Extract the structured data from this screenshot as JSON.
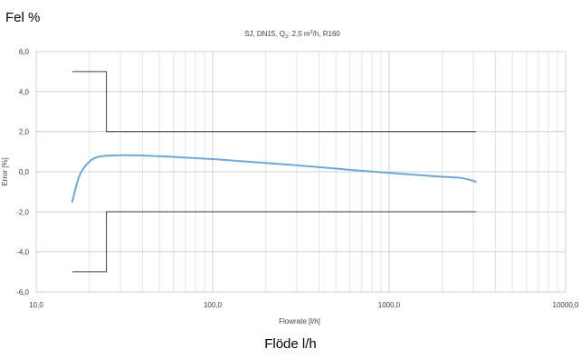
{
  "outer_labels": {
    "y": "Fel %",
    "x": "Flöde l/h"
  },
  "chart_data": {
    "type": "line",
    "title": "SJ, DN15, Q3: 2,5 m3/h, R160",
    "title_parts": {
      "pre": "SJ, DN15, Q",
      "sub": "3",
      "mid": ": 2,5 m",
      "sup": "3",
      "post": "/h, R160"
    },
    "xlabel": "Flowrate [l/h]",
    "ylabel": "Error [%]",
    "x_scale": "log",
    "xlim": [
      10,
      10000
    ],
    "ylim": [
      -6,
      6
    ],
    "x_ticks": [
      10,
      100,
      1000,
      10000
    ],
    "x_tick_labels": [
      "10,0",
      "100,0",
      "1000,0",
      "10000,0"
    ],
    "y_ticks": [
      6,
      4,
      2,
      0,
      -2,
      -4,
      -6
    ],
    "y_tick_labels": [
      "6,0",
      "4,0",
      "2,0",
      "0,0",
      "-2,0",
      "-4,0",
      "-6,0"
    ],
    "grid": {
      "major_horizontal": true,
      "minor_vertical": true
    },
    "line_color": "#6fa8d6",
    "limit_color": "#404040",
    "series": [
      {
        "values": [
          [
            16,
            -1.5
          ],
          [
            17,
            -0.6
          ],
          [
            18,
            0.0
          ],
          [
            20,
            0.5
          ],
          [
            22,
            0.72
          ],
          [
            25,
            0.8
          ],
          [
            30,
            0.82
          ],
          [
            40,
            0.81
          ],
          [
            60,
            0.74
          ],
          [
            100,
            0.63
          ],
          [
            150,
            0.52
          ],
          [
            200,
            0.44
          ],
          [
            300,
            0.32
          ],
          [
            500,
            0.16
          ],
          [
            700,
            0.05
          ],
          [
            1000,
            -0.06
          ],
          [
            1500,
            -0.17
          ],
          [
            2000,
            -0.25
          ],
          [
            2500,
            -0.3
          ],
          [
            2800,
            -0.38
          ],
          [
            3100,
            -0.5
          ]
        ]
      }
    ],
    "limits": {
      "upper": [
        [
          16,
          5
        ],
        [
          25,
          5
        ],
        [
          25,
          2
        ],
        [
          3100,
          2
        ]
      ],
      "lower": [
        [
          16,
          -5
        ],
        [
          25,
          -5
        ],
        [
          25,
          -2
        ],
        [
          3100,
          -2
        ]
      ]
    }
  }
}
